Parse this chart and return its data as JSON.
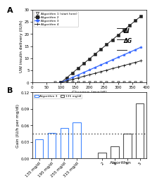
{
  "panel_A": {
    "title": "A",
    "xlabel": "Glucose (mg/dl)",
    "ylabel": "UW insulin delivery (IU/h)",
    "xlim": [
      0,
      400
    ],
    "ylim": [
      0,
      30
    ],
    "xticks": [
      0,
      50,
      100,
      150,
      200,
      250,
      300,
      350,
      400
    ],
    "yticks": [
      0,
      5,
      10,
      15,
      20,
      25,
      30
    ],
    "alg1": {
      "label": "Algorithm 1 (start here)",
      "color": "#222222",
      "marker": "v",
      "x_start": 80,
      "x_end": 380,
      "x_step": 20,
      "slope": 0.0,
      "threshold": 80
    },
    "alg2": {
      "label": "Algorithm 2",
      "color": "#222222",
      "marker": "s",
      "x_start": 100,
      "x_end": 380,
      "x_step": 20,
      "slope": 0.098,
      "threshold": 100
    },
    "alg3": {
      "label": "Algorithm 3",
      "color": "#3366ff",
      "marker": "*",
      "x_start": 100,
      "x_end": 380,
      "x_step": 20,
      "slope": 0.052,
      "threshold": 100
    },
    "alg4": {
      "label": "Algorithm 4",
      "color": "#222222",
      "marker": "+",
      "x_start": 100,
      "x_end": 380,
      "x_step": 20,
      "slope": 0.032,
      "threshold": 100
    },
    "delta_I_label": "ΔI",
    "delta_G_label": "ΔG",
    "delta_I_x": 318,
    "delta_I_y": 20.5,
    "delta_G_x": 318,
    "delta_G_y": 16.5,
    "delta_line_x1": 295,
    "delta_line_x2": 330,
    "delta_line_y_top": 22.5,
    "delta_line_y_mid": 17.8,
    "delta_line_y_bot": 13.5
  },
  "panel_B": {
    "title": "B",
    "xlabel": "Algorithm",
    "ylabel": "Gain (IU/h per mg/dl)",
    "ylim": [
      0,
      0.12
    ],
    "yticks": [
      0.0,
      0.03,
      0.06,
      0.09,
      0.12
    ],
    "dotted_line_y": 0.045,
    "legend_alg3": "Algorithm 3",
    "legend_135": "135 mg/dl",
    "alg3_bars": {
      "labels": [
        "135 mg/dl",
        "195 mg/dl",
        "255 mg/dl",
        "315 mg/dl"
      ],
      "values": [
        0.035,
        0.046,
        0.055,
        0.065
      ],
      "color": "#ffffff",
      "edgecolor": "#4488ff",
      "linewidth": 0.8
    },
    "alg_bars": {
      "x_labels": [
        "2",
        "3",
        "4",
        "5"
      ],
      "values": [
        0.011,
        0.022,
        0.045,
        0.1
      ],
      "color": "#ffffff",
      "edgecolor": "#555555",
      "linewidth": 0.8
    }
  }
}
